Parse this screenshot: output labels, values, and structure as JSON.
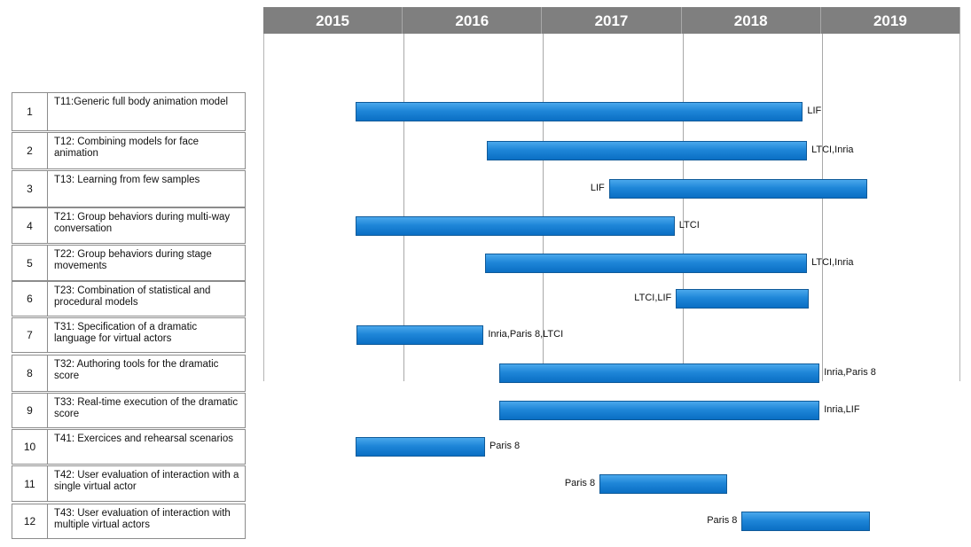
{
  "chart_data": {
    "type": "gantt",
    "years": [
      "2015",
      "2016",
      "2017",
      "2018",
      "2019"
    ],
    "timeline_start": 2015,
    "timeline_end": 2020,
    "tasks": [
      {
        "num": "1",
        "name": "T11:Generic full body animation model",
        "start": 2015.66,
        "end": 2018.87,
        "partners": "LIF",
        "label_side": "right"
      },
      {
        "num": "2",
        "name": "T12: Combining models for face animation",
        "start": 2016.6,
        "end": 2018.9,
        "partners": "LTCI,Inria",
        "label_side": "right"
      },
      {
        "num": "3",
        "name": "T13: Learning from few samples",
        "start": 2017.48,
        "end": 2019.33,
        "partners": "LIF",
        "label_side": "left"
      },
      {
        "num": "4",
        "name": "T21: Group behaviors during multi-way conversation",
        "start": 2015.66,
        "end": 2017.95,
        "partners": "LTCI",
        "label_side": "right"
      },
      {
        "num": "5",
        "name": "T22: Group behaviors during stage movements",
        "start": 2016.59,
        "end": 2018.9,
        "partners": "LTCI,Inria",
        "label_side": "right"
      },
      {
        "num": "6",
        "name": "T23: Combination of statistical and procedural models",
        "start": 2017.96,
        "end": 2018.91,
        "partners": "LTCI,LIF",
        "label_side": "left"
      },
      {
        "num": "7",
        "name": "T31: Specification of a dramatic language for virtual actors",
        "start": 2015.67,
        "end": 2016.58,
        "partners": "Inria,Paris 8,LTCI",
        "label_side": "right"
      },
      {
        "num": "8",
        "name": "T32: Authoring tools for the dramatic score",
        "start": 2016.69,
        "end": 2018.99,
        "partners": "Inria,Paris 8",
        "label_side": "right"
      },
      {
        "num": "9",
        "name": "T33: Real-time execution of the dramatic score",
        "start": 2016.69,
        "end": 2018.99,
        "partners": "Inria,LIF",
        "label_side": "right"
      },
      {
        "num": "10",
        "name": "T41: Exercices and rehearsal scenarios",
        "start": 2015.66,
        "end": 2016.59,
        "partners": "Paris 8",
        "label_side": "right"
      },
      {
        "num": "11",
        "name": "T42: User evaluation of interaction with a single virtual actor",
        "start": 2017.41,
        "end": 2018.33,
        "partners": "Paris 8",
        "label_side": "left"
      },
      {
        "num": "12",
        "name": "T43: User evaluation  of interaction with multiple virtual actors",
        "start": 2018.43,
        "end": 2019.35,
        "partners": "Paris 8",
        "label_side": "left"
      }
    ],
    "colors": {
      "bar": "#1f86d8",
      "header": "#7f7f7f"
    }
  }
}
